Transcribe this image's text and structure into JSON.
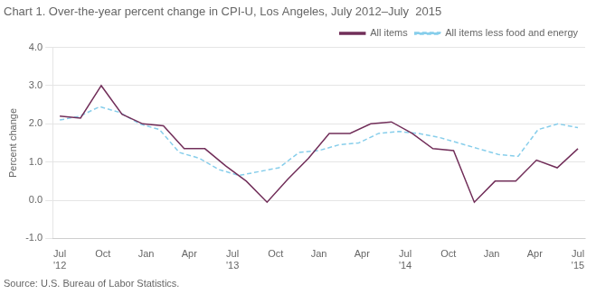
{
  "chart_data": {
    "type": "line",
    "title": "Chart 1. Over-the-year percent change in CPI-U, Los Angeles, July 2012–July  2015",
    "ylabel": "Percent change",
    "source": "Source: U.S. Bureau of Labor Statistics.",
    "xlim": [
      -0.5,
      36.5
    ],
    "xticks": [
      {
        "value": 0,
        "label": "Jul\n'12"
      },
      {
        "value": 3,
        "label": "Oct"
      },
      {
        "value": 6,
        "label": "Jan"
      },
      {
        "value": 9,
        "label": "Apr"
      },
      {
        "value": 12,
        "label": "Jul\n'13"
      },
      {
        "value": 15,
        "label": "Oct"
      },
      {
        "value": 18,
        "label": "Jan"
      },
      {
        "value": 21,
        "label": "Apr"
      },
      {
        "value": 24,
        "label": "Jul\n'14"
      },
      {
        "value": 27,
        "label": "Oct"
      },
      {
        "value": 30,
        "label": "Jan"
      },
      {
        "value": 33,
        "label": "Apr"
      },
      {
        "value": 36,
        "label": "Jul\n'15"
      }
    ],
    "ylim": [
      -1.0,
      4.0
    ],
    "yticks": [
      {
        "value": -1.0,
        "label": "-1.0"
      },
      {
        "value": 0.0,
        "label": "0.0"
      },
      {
        "value": 1.0,
        "label": "1.0"
      },
      {
        "value": 2.0,
        "label": "2.0"
      },
      {
        "value": 3.0,
        "label": "3.0"
      },
      {
        "value": 4.0,
        "label": "4.0"
      }
    ],
    "grid": "y",
    "legend": "upper right",
    "series": [
      {
        "name": "All items",
        "color": "#722F5A",
        "line_style": "solid",
        "x": [
          0,
          1.44,
          2.88,
          4.32,
          5.76,
          7.2,
          8.64,
          10.08,
          11.52,
          12.96,
          14.4,
          15.84,
          17.28,
          18.72,
          20.16,
          21.6,
          23.04,
          24.48,
          25.92,
          27.36,
          28.8,
          30.24,
          31.68,
          33.12,
          34.56,
          36
        ],
        "values": [
          2.2,
          2.15,
          3.0,
          2.25,
          2.0,
          1.95,
          1.35,
          1.35,
          0.9,
          0.5,
          -0.05,
          0.55,
          1.1,
          1.75,
          1.75,
          2.0,
          2.05,
          1.75,
          1.35,
          1.3,
          -0.05,
          0.5,
          0.5,
          1.05,
          0.85,
          1.35
        ]
      },
      {
        "name": "All items less food and energy",
        "color": "#87CEEB",
        "line_style": "dashed",
        "x": [
          0,
          1.3846153846153846,
          2.769230769230769,
          4.153846153846154,
          5.538461538461538,
          6.923076923076923,
          8.307692307692308,
          9.692307692307692,
          11.076923076923077,
          12.461538461538462,
          13.846153846153847,
          15.23076923076923,
          16.615384615384617,
          18,
          19.384615384615383,
          20.76923076923077,
          22.153846153846153,
          23.53846153846154,
          24.923076923076923,
          26.307692307692307,
          27.692307692307693,
          29.076923076923077,
          30.46153846153846,
          31.846153846153847,
          33.23076923076923,
          34.61538461538461,
          36
        ],
        "values": [
          2.1,
          2.2,
          2.45,
          2.3,
          2.0,
          1.85,
          1.25,
          1.1,
          0.8,
          0.65,
          0.75,
          0.85,
          1.25,
          1.3,
          1.45,
          1.5,
          1.75,
          1.8,
          1.75,
          1.65,
          1.5,
          1.35,
          1.2,
          1.15,
          1.85,
          2.0,
          1.9
        ]
      }
    ]
  }
}
